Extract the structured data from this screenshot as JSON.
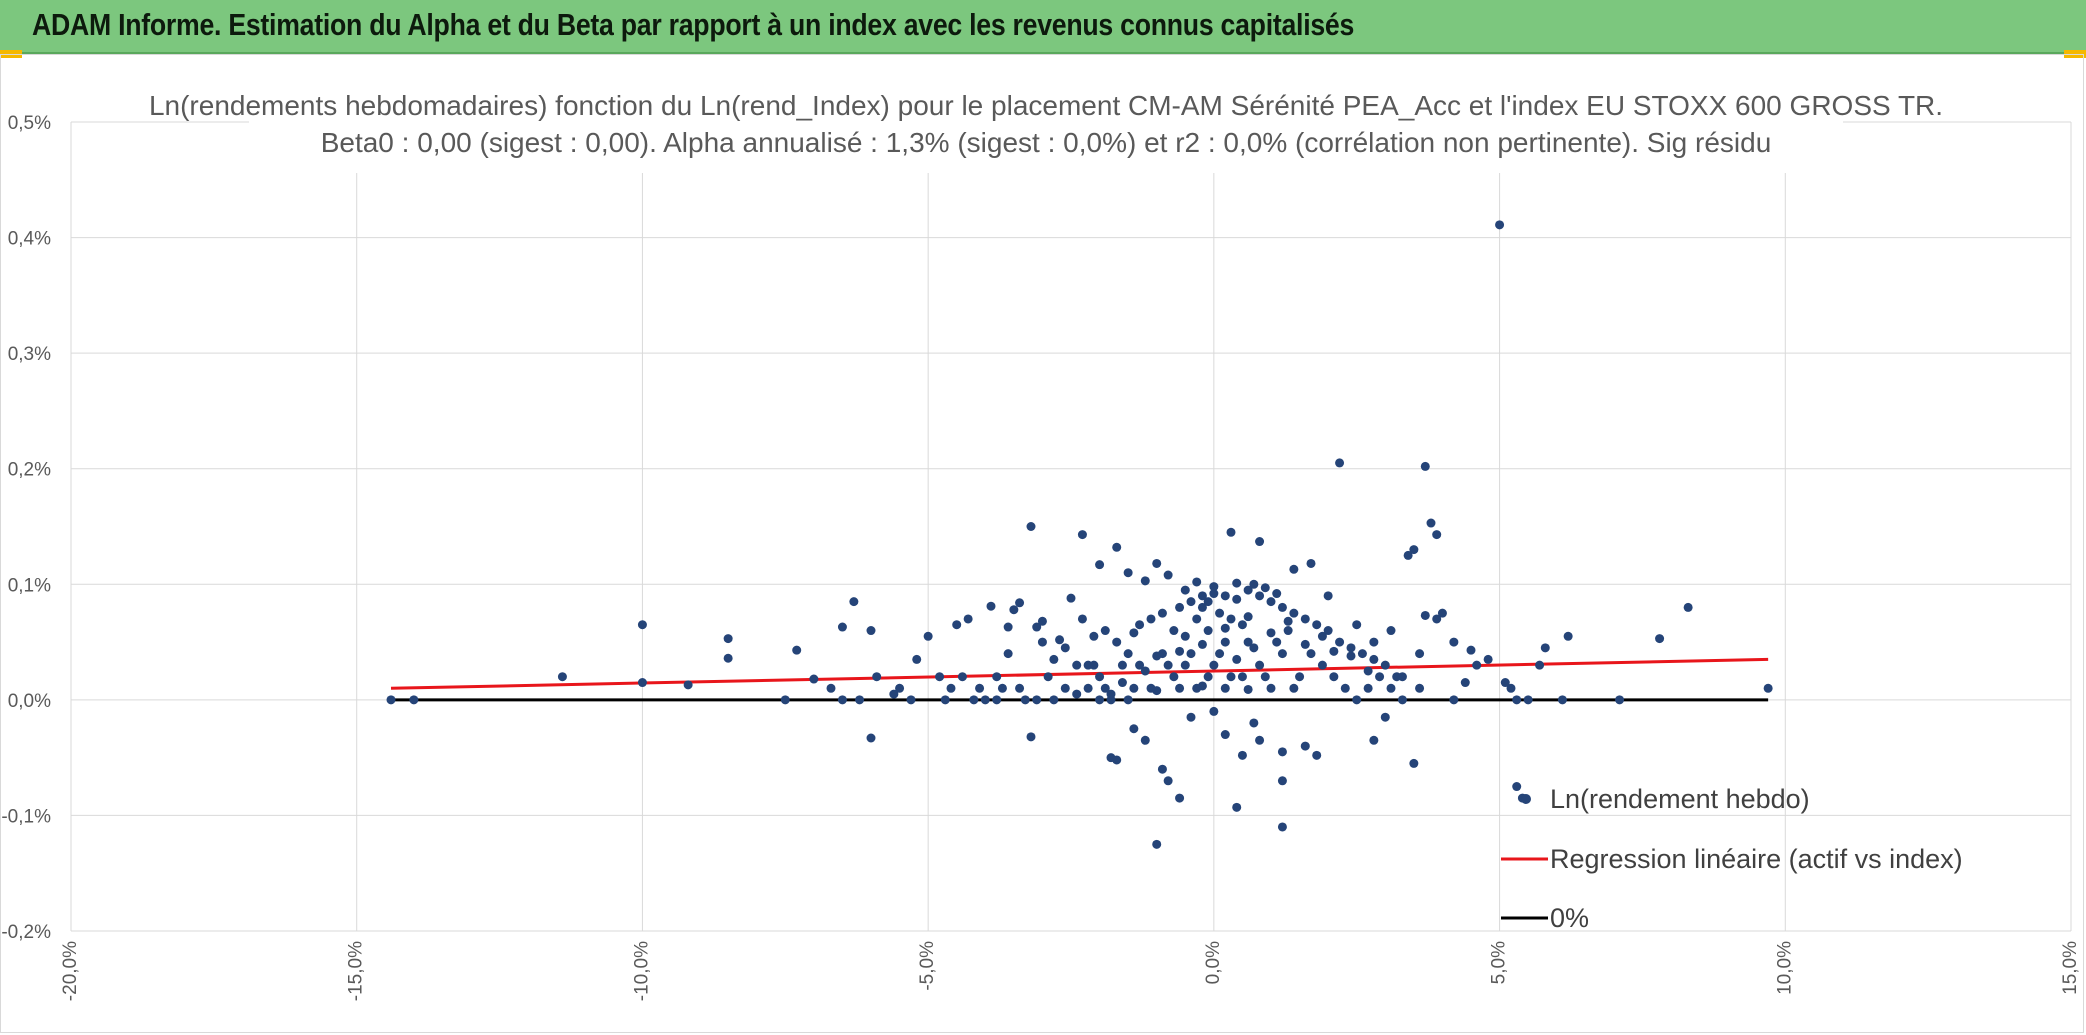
{
  "header": {
    "title": "ADAM Informe. Estimation du Alpha et du Beta par rapport à un index avec les revenus connus capitalisés",
    "background": "#7cc77e",
    "corner_accent": "#f5b800"
  },
  "chart_data": {
    "type": "scatter",
    "title": "Ln(rendements hebdomadaires) fonction du Ln(rend_Index) pour le placement CM-AM Sérénité PEA_Acc et l'index EU STOXX 600 GROSS TR.",
    "subtitle": "Beta0 : 0,00 (sigest : 0,00). Alpha annualisé : 1,3% (sigest : 0,0%) et r2 : 0,0% (corrélation non pertinente). Sig résidu",
    "xlabel": "",
    "ylabel": "",
    "xlim": [
      -0.2,
      0.15
    ],
    "ylim": [
      -0.002,
      0.005
    ],
    "x_ticks": [
      -0.2,
      -0.15,
      -0.1,
      -0.05,
      0.0,
      0.05,
      0.1,
      0.15
    ],
    "x_tick_labels": [
      "-20,0%",
      "-15,0%",
      "-10,0%",
      "-5,0%",
      "0,0%",
      "5,0%",
      "10,0%",
      "15,0%"
    ],
    "y_ticks": [
      -0.002,
      -0.001,
      0.0,
      0.001,
      0.002,
      0.003,
      0.004,
      0.005
    ],
    "y_tick_labels": [
      "-0,2%",
      "-0,1%",
      "0,0%",
      "0,1%",
      "0,2%",
      "0,3%",
      "0,4%",
      "0,5%"
    ],
    "grid": "vertical and horizontal",
    "legend_position": "bottom-right",
    "series": [
      {
        "name": "Ln(rendement hebdo)",
        "kind": "scatter",
        "color": "#254478",
        "points": [
          [
            -0.144,
            0.0
          ],
          [
            -0.14,
            0.0
          ],
          [
            -0.114,
            0.0002
          ],
          [
            -0.1,
            0.00065
          ],
          [
            -0.1,
            0.00015
          ],
          [
            -0.092,
            0.00013
          ],
          [
            -0.085,
            0.00053
          ],
          [
            -0.085,
            0.00036
          ],
          [
            -0.075,
            0.0
          ],
          [
            -0.073,
            0.00043
          ],
          [
            -0.07,
            0.00018
          ],
          [
            -0.065,
            0.00063
          ],
          [
            -0.065,
            0.0
          ],
          [
            -0.063,
            0.00085
          ],
          [
            -0.06,
            0.0006
          ],
          [
            -0.06,
            -0.00033
          ],
          [
            -0.059,
            0.0002
          ],
          [
            -0.055,
            0.0001
          ],
          [
            -0.052,
            0.00035
          ],
          [
            -0.05,
            0.00055
          ],
          [
            -0.048,
            0.0002
          ],
          [
            -0.045,
            0.00065
          ],
          [
            -0.043,
            0.0007
          ],
          [
            -0.04,
            0.0
          ],
          [
            -0.038,
            0.0002
          ],
          [
            -0.036,
            0.0004
          ],
          [
            -0.035,
            0.00078
          ],
          [
            -0.038,
            0.0
          ],
          [
            -0.037,
            0.0001
          ],
          [
            -0.033,
            0.0
          ],
          [
            -0.03,
            0.0005
          ],
          [
            -0.028,
            0.00035
          ],
          [
            -0.026,
            0.00045
          ],
          [
            -0.02,
            0.0
          ],
          [
            -0.016,
            0.00015
          ],
          [
            -0.031,
            0.00063
          ],
          [
            -0.027,
            0.00052
          ],
          [
            -0.025,
            0.00088
          ],
          [
            -0.022,
            0.0003
          ],
          [
            -0.018,
            0.0
          ],
          [
            -0.032,
            -0.00032
          ],
          [
            -0.039,
            0.00081
          ],
          [
            -0.036,
            0.00063
          ],
          [
            -0.034,
            0.00084
          ],
          [
            -0.03,
            0.00068
          ],
          [
            -0.032,
            0.0015
          ],
          [
            -0.023,
            0.00143
          ],
          [
            -0.02,
            0.00117
          ],
          [
            -0.017,
            0.00132
          ],
          [
            -0.015,
            0.0011
          ],
          [
            -0.012,
            0.00103
          ],
          [
            -0.01,
            0.00118
          ],
          [
            -0.008,
            0.00108
          ],
          [
            -0.005,
            0.00095
          ],
          [
            -0.002,
            0.0009
          ],
          [
            -0.023,
            0.0007
          ],
          [
            -0.021,
            0.00055
          ],
          [
            -0.019,
            0.0006
          ],
          [
            -0.017,
            0.0005
          ],
          [
            -0.015,
            0.0004
          ],
          [
            -0.013,
            0.00065
          ],
          [
            -0.011,
            0.0007
          ],
          [
            -0.009,
            0.00075
          ],
          [
            -0.007,
            0.0006
          ],
          [
            -0.005,
            0.00055
          ],
          [
            -0.003,
            0.0007
          ],
          [
            -0.001,
            0.0006
          ],
          [
            0.001,
            0.00075
          ],
          [
            0.003,
            0.0007
          ],
          [
            0.005,
            0.00065
          ],
          [
            -0.024,
            0.0003
          ],
          [
            -0.02,
            0.0002
          ],
          [
            -0.016,
            0.0003
          ],
          [
            -0.012,
            0.00025
          ],
          [
            -0.008,
            0.0003
          ],
          [
            -0.004,
            0.0004
          ],
          [
            0.0,
            0.0003
          ],
          [
            0.004,
            0.00035
          ],
          [
            0.008,
            0.0003
          ],
          [
            0.012,
            0.0004
          ],
          [
            -0.022,
            0.0001
          ],
          [
            -0.018,
            5e-05
          ],
          [
            -0.014,
            0.0001
          ],
          [
            -0.01,
            8e-05
          ],
          [
            -0.006,
            0.0001
          ],
          [
            -0.002,
            0.00012
          ],
          [
            0.002,
            0.0001
          ],
          [
            0.006,
            9e-05
          ],
          [
            0.01,
            0.0001
          ],
          [
            0.014,
            0.0001
          ],
          [
            -0.006,
            0.0008
          ],
          [
            -0.004,
            0.00085
          ],
          [
            -0.002,
            0.0008
          ],
          [
            0.0,
            0.00092
          ],
          [
            0.002,
            0.0009
          ],
          [
            0.004,
            0.00087
          ],
          [
            0.006,
            0.00095
          ],
          [
            0.008,
            0.0009
          ],
          [
            0.01,
            0.00085
          ],
          [
            0.012,
            0.0008
          ],
          [
            0.014,
            0.00075
          ],
          [
            0.016,
            0.0007
          ],
          [
            0.018,
            0.00065
          ],
          [
            0.02,
            0.0006
          ],
          [
            0.022,
            0.0005
          ],
          [
            0.024,
            0.00045
          ],
          [
            0.026,
            0.0004
          ],
          [
            0.028,
            0.00035
          ],
          [
            0.03,
            0.0003
          ],
          [
            0.032,
            0.0002
          ],
          [
            0.003,
            0.00145
          ],
          [
            0.008,
            0.00137
          ],
          [
            0.014,
            0.00113
          ],
          [
            0.017,
            0.00118
          ],
          [
            0.02,
            0.0009
          ],
          [
            0.022,
            0.00205
          ],
          [
            0.025,
            0.00065
          ],
          [
            0.028,
            0.0005
          ],
          [
            0.031,
            0.0006
          ],
          [
            0.034,
            0.00125
          ],
          [
            0.035,
            0.0013
          ],
          [
            0.036,
            0.0004
          ],
          [
            0.037,
            0.00202
          ],
          [
            0.038,
            0.00153
          ],
          [
            0.039,
            0.00143
          ],
          [
            0.037,
            0.00073
          ],
          [
            0.039,
            0.0007
          ],
          [
            0.04,
            0.00075
          ],
          [
            0.042,
            0.0005
          ],
          [
            0.045,
            0.00043
          ],
          [
            0.046,
            0.0003
          ],
          [
            0.048,
            0.00035
          ],
          [
            0.05,
            0.00411
          ],
          [
            0.051,
            0.00015
          ],
          [
            0.053,
            0.0
          ],
          [
            0.055,
            0.0
          ],
          [
            0.057,
            0.0003
          ],
          [
            0.058,
            0.00045
          ],
          [
            0.061,
            0.0
          ],
          [
            0.062,
            0.00055
          ],
          [
            0.071,
            0.0
          ],
          [
            0.078,
            0.00053
          ],
          [
            0.083,
            0.0008
          ],
          [
            0.097,
            0.0001
          ],
          [
            0.033,
            0.0
          ],
          [
            0.03,
            -0.00015
          ],
          [
            0.028,
            -0.00035
          ],
          [
            0.035,
            -0.00055
          ],
          [
            0.018,
            -0.00048
          ],
          [
            0.016,
            -0.0004
          ],
          [
            0.012,
            -0.00045
          ],
          [
            0.012,
            -0.0007
          ],
          [
            0.012,
            -0.0011
          ],
          [
            0.008,
            -0.00035
          ],
          [
            0.005,
            -0.00048
          ],
          [
            0.007,
            -0.0002
          ],
          [
            0.004,
            -0.00093
          ],
          [
            0.002,
            -0.0003
          ],
          [
            0.0,
            -0.0001
          ],
          [
            -0.004,
            -0.00015
          ],
          [
            -0.006,
            -0.00085
          ],
          [
            -0.008,
            -0.0007
          ],
          [
            -0.01,
            -0.00125
          ],
          [
            -0.009,
            -0.0006
          ],
          [
            -0.012,
            -0.00035
          ],
          [
            -0.014,
            -0.00025
          ],
          [
            -0.018,
            -0.0005
          ],
          [
            -0.017,
            -0.00052
          ],
          [
            0.053,
            -0.00075
          ],
          [
            0.054,
            -0.00085
          ],
          [
            0.052,
            0.0001
          ],
          [
            0.044,
            0.00015
          ],
          [
            0.042,
            0.0
          ],
          [
            -0.047,
            0.0
          ],
          [
            -0.044,
            0.0002
          ],
          [
            -0.041,
            0.0001
          ],
          [
            -0.028,
            0.0
          ],
          [
            -0.024,
            5e-05
          ],
          [
            0.001,
            0.0004
          ],
          [
            0.002,
            0.0005
          ],
          [
            0.003,
            0.0002
          ],
          [
            0.005,
            0.0002
          ],
          [
            0.006,
            0.0005
          ],
          [
            0.007,
            0.00045
          ],
          [
            0.009,
            0.0002
          ],
          [
            0.011,
            0.0005
          ],
          [
            0.013,
            0.0006
          ],
          [
            0.015,
            0.0002
          ],
          [
            0.017,
            0.0004
          ],
          [
            0.019,
            0.0003
          ],
          [
            0.021,
            0.0002
          ],
          [
            0.023,
            0.0001
          ],
          [
            0.025,
            0.0
          ],
          [
            0.027,
            0.0001
          ],
          [
            0.029,
            0.0002
          ],
          [
            0.031,
            0.0001
          ],
          [
            0.033,
            0.0002
          ],
          [
            0.036,
            0.0001
          ],
          [
            -0.001,
            0.0002
          ],
          [
            -0.003,
            0.0001
          ],
          [
            -0.005,
            0.0003
          ],
          [
            -0.007,
            0.0002
          ],
          [
            -0.009,
            0.0004
          ],
          [
            -0.011,
            0.0001
          ],
          [
            -0.013,
            0.0003
          ],
          [
            -0.015,
            0.0
          ],
          [
            -0.019,
            0.0001
          ],
          [
            -0.021,
            0.0003
          ],
          [
            -0.026,
            0.0001
          ],
          [
            -0.029,
            0.0002
          ],
          [
            -0.031,
            0.0
          ],
          [
            -0.034,
            0.0001
          ],
          [
            -0.042,
            0.0
          ],
          [
            -0.046,
            0.0001
          ],
          [
            -0.053,
            0.0
          ],
          [
            -0.056,
            5e-05
          ],
          [
            -0.062,
            0.0
          ],
          [
            -0.067,
            0.0001
          ],
          [
            0.0,
            0.00098
          ],
          [
            0.004,
            0.00101
          ],
          [
            0.007,
            0.001
          ],
          [
            0.009,
            0.00097
          ],
          [
            0.011,
            0.00092
          ],
          [
            -0.003,
            0.00102
          ],
          [
            -0.001,
            0.00085
          ],
          [
            0.006,
            0.00072
          ],
          [
            0.013,
            0.00068
          ],
          [
            0.019,
            0.00055
          ],
          [
            0.016,
            0.00048
          ],
          [
            0.021,
            0.00042
          ],
          [
            0.024,
            0.00038
          ],
          [
            0.027,
            0.00025
          ],
          [
            0.01,
            0.00058
          ],
          [
            0.002,
            0.00062
          ],
          [
            -0.002,
            0.00048
          ],
          [
            -0.006,
            0.00042
          ],
          [
            -0.01,
            0.00038
          ],
          [
            -0.014,
            0.00058
          ]
        ]
      },
      {
        "name": "Regression linéaire (actif vs index)",
        "kind": "line",
        "color": "#e8161b",
        "points": [
          [
            -0.144,
            0.0001
          ],
          [
            0.097,
            0.00035
          ]
        ]
      },
      {
        "name": "0%",
        "kind": "line",
        "color": "#000000",
        "points": [
          [
            -0.144,
            0.0
          ],
          [
            0.097,
            0.0
          ]
        ]
      }
    ]
  }
}
